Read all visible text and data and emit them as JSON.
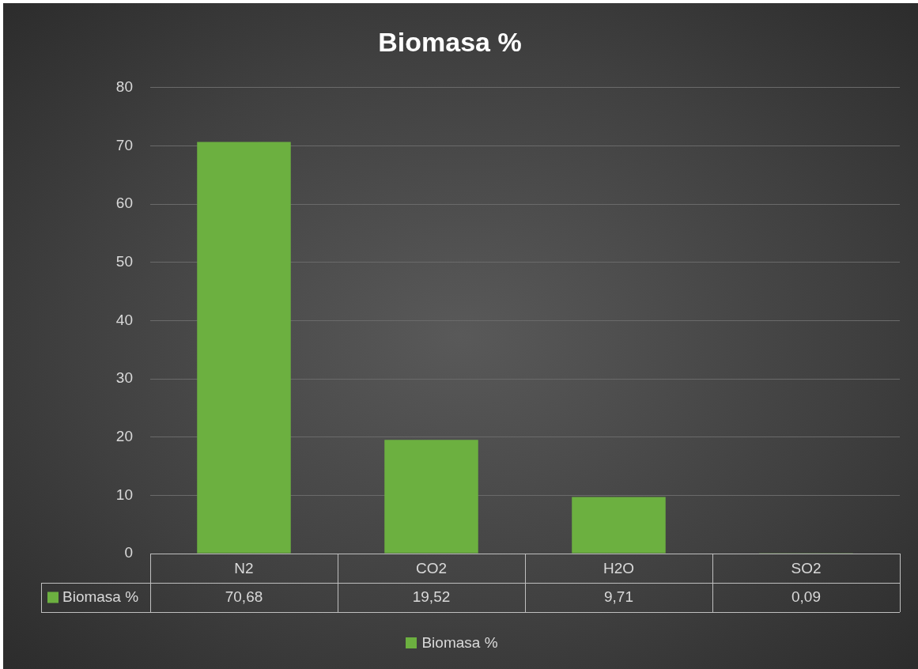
{
  "chart_data": {
    "type": "bar",
    "title": "Biomasa %",
    "categories": [
      "N2",
      "CO2",
      "H2O",
      "SO2"
    ],
    "series": [
      {
        "name": "Biomasa %",
        "color": "#6cb040",
        "values": [
          70.68,
          19.52,
          9.71,
          0.09
        ],
        "value_labels": [
          "70,68",
          "19,52",
          "9,71",
          "0,09"
        ]
      }
    ],
    "ylim": [
      0,
      80
    ],
    "yticks": [
      0,
      10,
      20,
      30,
      40,
      50,
      60,
      70,
      80
    ],
    "grid": "y",
    "legend": "bottom"
  }
}
